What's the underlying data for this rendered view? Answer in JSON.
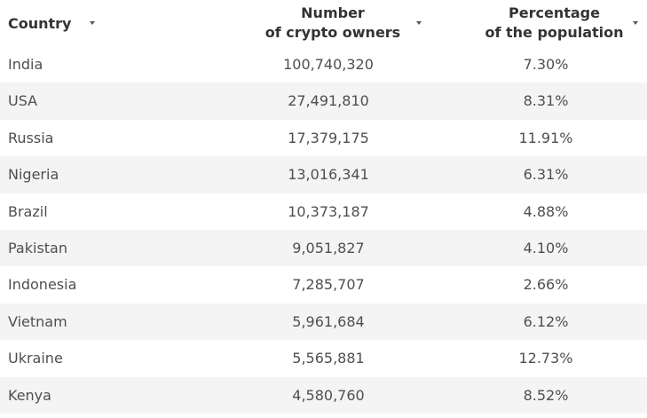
{
  "table": {
    "columns": [
      {
        "line1": "Country",
        "line2": ""
      },
      {
        "line1": "Number",
        "line2": "of crypto owners"
      },
      {
        "line1": "Percentage",
        "line2": "of the population"
      }
    ],
    "rows": [
      {
        "country": "India",
        "owners": "100,740,320",
        "percent": "7.30%"
      },
      {
        "country": "USA",
        "owners": "27,491,810",
        "percent": "8.31%"
      },
      {
        "country": "Russia",
        "owners": "17,379,175",
        "percent": "11.91%"
      },
      {
        "country": "Nigeria",
        "owners": "13,016,341",
        "percent": "6.31%"
      },
      {
        "country": "Brazil",
        "owners": "10,373,187",
        "percent": "4.88%"
      },
      {
        "country": "Pakistan",
        "owners": "9,051,827",
        "percent": "4.10%"
      },
      {
        "country": "Indonesia",
        "owners": "7,285,707",
        "percent": "2.66%"
      },
      {
        "country": "Vietnam",
        "owners": "5,961,684",
        "percent": "6.12%"
      },
      {
        "country": "Ukraine",
        "owners": "5,565,881",
        "percent": "12.73%"
      },
      {
        "country": "Kenya",
        "owners": "4,580,760",
        "percent": "8.52%"
      }
    ],
    "sort_icon": "caret-down-icon",
    "row_stripe_color": "#f4f4f4"
  }
}
